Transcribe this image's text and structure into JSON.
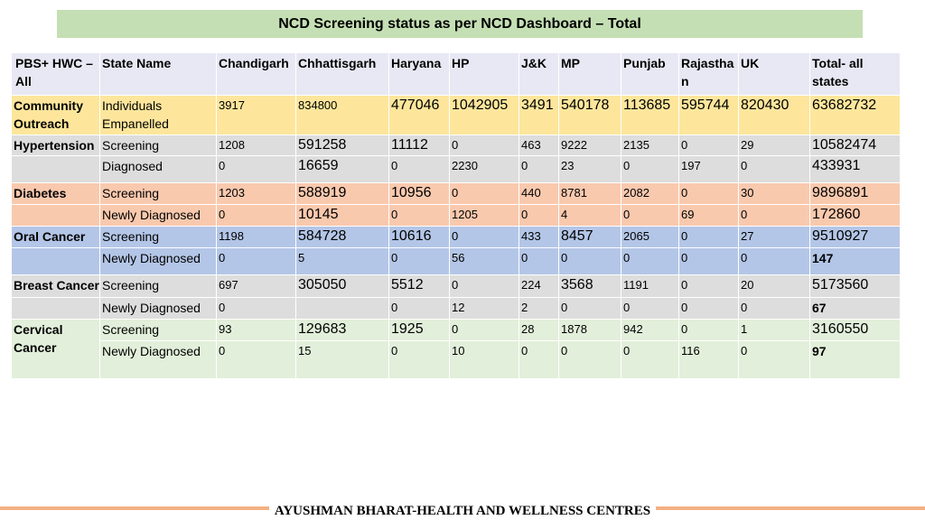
{
  "title": "NCD Screening status as per NCD Dashboard – Total",
  "headers": [
    "PBS+ HWC – All",
    "State Name",
    "Chandigarh",
    "Chhattisgarh",
    "Haryana",
    "HP",
    "J&K",
    "MP",
    "Punjab",
    "Rajastha n",
    "UK",
    "Total- all states"
  ],
  "rows": [
    {
      "group": "Community Outreach",
      "label": "Individuals Empanelled",
      "values": [
        "3917",
        "834800",
        "477046",
        "1042905",
        "3491",
        "540178",
        "113685",
        "595744",
        "820430",
        "63682732"
      ]
    },
    {
      "group": "Hypertension",
      "label": "Screening",
      "values": [
        "1208",
        "591258",
        "11112",
        "0",
        "463",
        "9222",
        "2135",
        "0",
        "29",
        "10582474"
      ]
    },
    {
      "group": "",
      "label": "Diagnosed",
      "values": [
        "0",
        "16659",
        "0",
        "2230",
        "0",
        "23",
        "0",
        "197",
        "0",
        "433931"
      ]
    },
    {
      "group": "Diabetes",
      "label": "Screening",
      "values": [
        "1203",
        "588919",
        "10956",
        "0",
        "440",
        "8781",
        "2082",
        "0",
        "30",
        "9896891"
      ]
    },
    {
      "group": "",
      "label": "Newly Diagnosed",
      "values": [
        "0",
        "10145",
        "0",
        "1205",
        "0",
        "4",
        "0",
        "69",
        "0",
        "172860"
      ]
    },
    {
      "group": "Oral Cancer",
      "label": "Screening",
      "values": [
        "1198",
        "584728",
        "10616",
        "0",
        "433",
        "8457",
        "2065",
        "0",
        "27",
        "9510927"
      ]
    },
    {
      "group": "",
      "label": "Newly Diagnosed",
      "values": [
        "0",
        "5",
        "0",
        "56",
        "0",
        "0",
        "0",
        "0",
        "0",
        "147"
      ]
    },
    {
      "group": "Breast Cancer",
      "label": "Screening",
      "values": [
        "697",
        "305050",
        "5512",
        "0",
        "224",
        "3568",
        "1191",
        "0",
        "20",
        "5173560"
      ]
    },
    {
      "group": "",
      "label": "Newly Diagnosed",
      "values": [
        "0",
        "",
        "0",
        "12",
        "2",
        "0",
        "0",
        "0",
        "0",
        "67"
      ]
    },
    {
      "group": "Cervical Cancer",
      "label": "Screening",
      "values": [
        "93",
        "129683",
        "1925",
        "0",
        "28",
        "1878",
        "942",
        "0",
        "1",
        "3160550"
      ]
    },
    {
      "group": "",
      "label": "Newly Diagnosed",
      "values": [
        "0",
        "15",
        "0",
        "10",
        "0",
        "0",
        "0",
        "116",
        "0",
        "97"
      ]
    }
  ],
  "footer": "AYUSHMAN BHARAT-HEALTH AND WELLNESS CENTRES",
  "colors": {
    "title_bg": "#c5dfb4",
    "header_bg": "#e8e8f4",
    "community_bg": "#fde69c",
    "hypertension_bg": "#dddddd",
    "diabetes_bg": "#f9c9ae",
    "oral_bg": "#b4c6e7",
    "breast_bg": "#dddddd",
    "cervical_bg": "#e2efda",
    "footer_line": "#f4b183"
  }
}
